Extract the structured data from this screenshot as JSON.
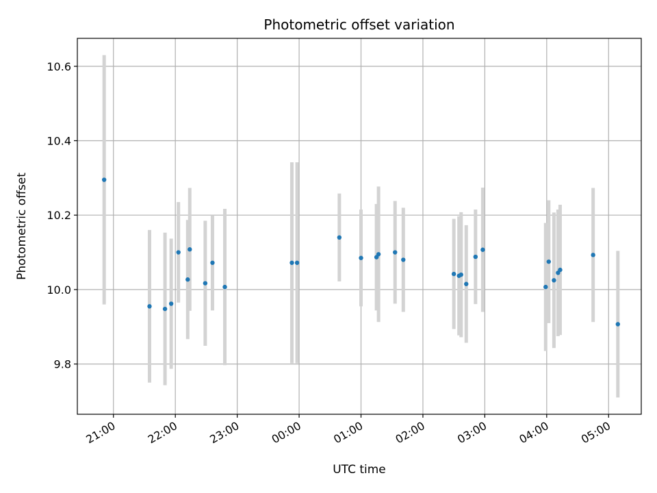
{
  "chart_data": {
    "type": "scatter",
    "title": "Photometric offset variation",
    "xlabel": "UTC time",
    "ylabel": "Photometric offset",
    "x_unit": "hours (UTC, continuing past midnight)",
    "xlim": [
      20.4167,
      29.5278
    ],
    "ylim": [
      9.665,
      10.675
    ],
    "grid": true,
    "x_ticks": [
      {
        "value": 21.0,
        "label": "21:00"
      },
      {
        "value": 22.0,
        "label": "22:00"
      },
      {
        "value": 23.0,
        "label": "23:00"
      },
      {
        "value": 24.0,
        "label": "00:00"
      },
      {
        "value": 25.0,
        "label": "01:00"
      },
      {
        "value": 26.0,
        "label": "02:00"
      },
      {
        "value": 27.0,
        "label": "03:00"
      },
      {
        "value": 28.0,
        "label": "04:00"
      },
      {
        "value": 29.0,
        "label": "05:00"
      }
    ],
    "y_ticks": [
      {
        "value": 9.8,
        "label": "9.8"
      },
      {
        "value": 10.0,
        "label": "10.0"
      },
      {
        "value": 10.2,
        "label": "10.2"
      },
      {
        "value": 10.4,
        "label": "10.4"
      },
      {
        "value": 10.6,
        "label": "10.6"
      }
    ],
    "colors": {
      "point": "#1f77b4",
      "errorbar": "#d3d3d3",
      "grid": "#b0b0b0"
    },
    "points": [
      {
        "x": 20.85,
        "y": 10.295,
        "err": 0.335
      },
      {
        "x": 21.583,
        "y": 9.955,
        "err": 0.205
      },
      {
        "x": 21.833,
        "y": 9.948,
        "err": 0.205
      },
      {
        "x": 21.933,
        "y": 9.962,
        "err": 0.175
      },
      {
        "x": 22.05,
        "y": 10.1,
        "err": 0.135
      },
      {
        "x": 22.2,
        "y": 10.027,
        "err": 0.16
      },
      {
        "x": 22.233,
        "y": 10.108,
        "err": 0.165
      },
      {
        "x": 22.483,
        "y": 10.017,
        "err": 0.168
      },
      {
        "x": 22.6,
        "y": 10.072,
        "err": 0.128
      },
      {
        "x": 22.8,
        "y": 10.007,
        "err": 0.21
      },
      {
        "x": 23.883,
        "y": 10.072,
        "err": 0.27
      },
      {
        "x": 23.967,
        "y": 10.072,
        "err": 0.27
      },
      {
        "x": 24.65,
        "y": 10.14,
        "err": 0.118
      },
      {
        "x": 25.0,
        "y": 10.085,
        "err": 0.13
      },
      {
        "x": 25.25,
        "y": 10.087,
        "err": 0.143
      },
      {
        "x": 25.283,
        "y": 10.095,
        "err": 0.182
      },
      {
        "x": 25.55,
        "y": 10.1,
        "err": 0.138
      },
      {
        "x": 25.683,
        "y": 10.08,
        "err": 0.14
      },
      {
        "x": 26.5,
        "y": 10.042,
        "err": 0.148
      },
      {
        "x": 26.583,
        "y": 10.037,
        "err": 0.16
      },
      {
        "x": 26.617,
        "y": 10.04,
        "err": 0.168
      },
      {
        "x": 26.7,
        "y": 10.015,
        "err": 0.158
      },
      {
        "x": 26.85,
        "y": 10.088,
        "err": 0.127
      },
      {
        "x": 26.967,
        "y": 10.107,
        "err": 0.167
      },
      {
        "x": 27.983,
        "y": 10.007,
        "err": 0.172
      },
      {
        "x": 28.033,
        "y": 10.075,
        "err": 0.165
      },
      {
        "x": 28.117,
        "y": 10.025,
        "err": 0.182
      },
      {
        "x": 28.183,
        "y": 10.045,
        "err": 0.17
      },
      {
        "x": 28.217,
        "y": 10.053,
        "err": 0.175
      },
      {
        "x": 28.75,
        "y": 10.093,
        "err": 0.18
      },
      {
        "x": 29.15,
        "y": 9.907,
        "err": 0.197
      }
    ]
  }
}
